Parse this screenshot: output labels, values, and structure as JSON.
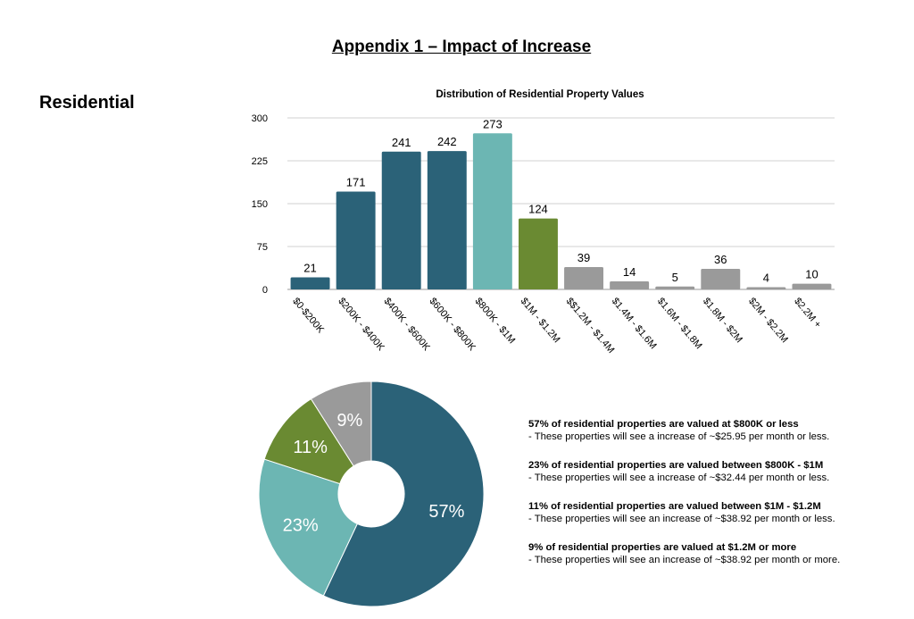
{
  "page_title": "Appendix 1 – Impact of Increase",
  "section_heading": "Residential",
  "colors": {
    "dark_teal": "#2b6278",
    "light_teal": "#6cb6b3",
    "green": "#6a8a32",
    "gray": "#9a9a9a",
    "grid": "#d0d0d0"
  },
  "chart_data": [
    {
      "type": "bar",
      "title": "Distribution of Residential Property Values",
      "categories": [
        "$0-$200K",
        "$200K - $400K",
        "$400K - $600K",
        "$600K - $800K",
        "$800K - $1M",
        "$1M - $1.2M",
        "$$1.2M - $1.4M",
        "$1.4M - $1.6M",
        "$1.6M - $1.8M",
        "$1.8M - $2M",
        "$2M - $2.2M",
        "$2.2M +"
      ],
      "values": [
        21,
        171,
        241,
        242,
        273,
        124,
        39,
        14,
        5,
        36,
        4,
        10
      ],
      "bar_colors": [
        "#2b6278",
        "#2b6278",
        "#2b6278",
        "#2b6278",
        "#6cb6b3",
        "#6a8a32",
        "#9a9a9a",
        "#9a9a9a",
        "#9a9a9a",
        "#9a9a9a",
        "#9a9a9a",
        "#9a9a9a"
      ],
      "yticks": [
        0,
        75,
        150,
        225,
        300
      ],
      "ylim": [
        0,
        300
      ],
      "grid": true
    },
    {
      "type": "pie",
      "donut": true,
      "slices": [
        {
          "label": "57%",
          "value": 57,
          "color": "#2b6278"
        },
        {
          "label": "23%",
          "value": 23,
          "color": "#6cb6b3"
        },
        {
          "label": "11%",
          "value": 11,
          "color": "#6a8a32"
        },
        {
          "label": "9%",
          "value": 9,
          "color": "#9a9a9a"
        }
      ]
    }
  ],
  "notes": [
    {
      "head": "57% of residential properties are valued at $800K or less",
      "detail": "- These properties will see a increase of ~$25.95 per month or less."
    },
    {
      "head": "23% of residential properties are valued between $800K - $1M",
      "detail": "- These properties will see a increase of ~$32.44 per month or less."
    },
    {
      "head": "11% of residential properties are valued between $1M - $1.2M",
      "detail": "- These properties will see an increase of ~$38.92 per month or less."
    },
    {
      "head": "9% of residential properties are valued at $1.2M or more",
      "detail": "- These properties will see an increase of ~$38.92 per month or more."
    }
  ]
}
